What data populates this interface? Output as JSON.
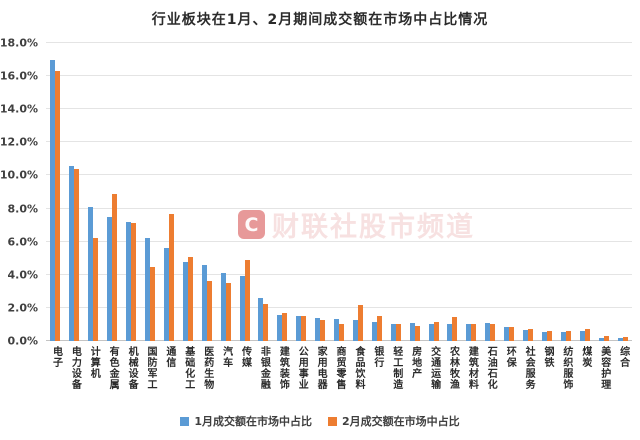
{
  "title": "行业板块在1月、2月期间成交额在市场中占比情况",
  "watermark": {
    "logo_letter": "C",
    "text": "财联社股市频道"
  },
  "colors": {
    "jan_bar": "#5B9BD5",
    "feb_bar": "#ED7D31",
    "watermark_red": "#D44646"
  },
  "chart_data": {
    "type": "bar",
    "title": "行业板块在1月、2月期间成交额在市场中占比情况",
    "xlabel": "",
    "ylabel": "",
    "ylim": [
      0,
      18
    ],
    "ytick_step": 2,
    "ytick_labels": [
      "18.0%",
      "16.0%",
      "14.0%",
      "12.0%",
      "10.0%",
      "8.0%",
      "6.0%",
      "4.0%",
      "2.0%",
      "0.0%"
    ],
    "grid": true,
    "legend_position": "bottom",
    "categories": [
      "电子",
      "电力设备",
      "计算机",
      "有色金属",
      "机械设备",
      "国防军工",
      "通信",
      "基础化工",
      "医药生物",
      "汽车",
      "传媒",
      "非银金融",
      "建筑装饰",
      "公用事业",
      "家用电器",
      "商贸零售",
      "食品饮料",
      "银行",
      "轻工制造",
      "房地产",
      "交通运输",
      "农林牧渔",
      "建筑材料",
      "石油石化",
      "环保",
      "社会服务",
      "钢铁",
      "纺织服饰",
      "煤炭",
      "美容护理",
      "综合"
    ],
    "series": [
      {
        "name": "1月成交额在市场中占比",
        "color": "#5B9BD5",
        "values": [
          17.0,
          10.6,
          8.1,
          7.5,
          7.2,
          6.2,
          5.6,
          4.8,
          4.6,
          4.1,
          3.9,
          2.6,
          1.6,
          1.5,
          1.4,
          1.3,
          1.25,
          1.15,
          1.05,
          1.1,
          1.0,
          1.0,
          1.05,
          1.1,
          0.85,
          0.65,
          0.55,
          0.55,
          0.6,
          0.2,
          0.2
        ]
      },
      {
        "name": "2月成交额在市场中占比",
        "color": "#ED7D31",
        "values": [
          16.3,
          10.4,
          6.2,
          8.9,
          7.1,
          4.5,
          7.7,
          5.1,
          3.6,
          3.5,
          4.9,
          2.25,
          1.7,
          1.5,
          1.25,
          1.0,
          2.15,
          1.5,
          1.05,
          0.9,
          1.15,
          1.45,
          1.0,
          1.0,
          0.85,
          0.7,
          0.6,
          0.6,
          0.7,
          0.3,
          0.25
        ]
      }
    ]
  }
}
